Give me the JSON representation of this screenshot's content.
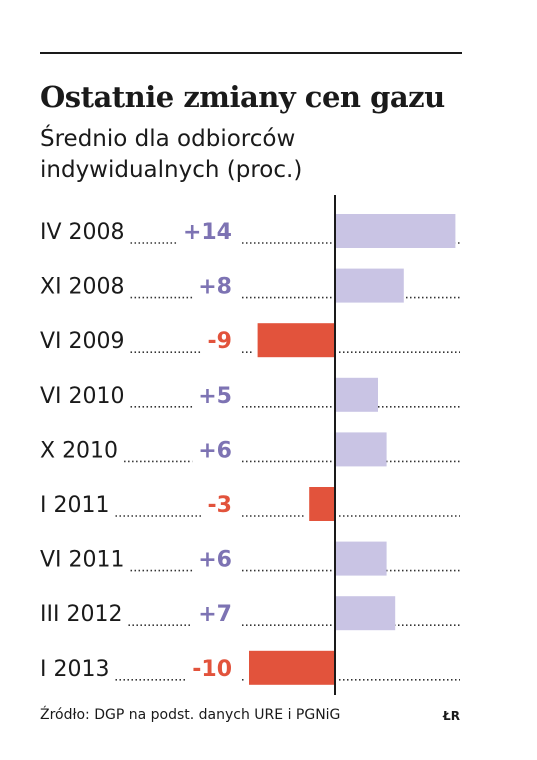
{
  "header": {
    "title": "Ostatnie zmiany cen gazu",
    "subtitle": "Średnio dla odbiorców indywidualnych (proc.)"
  },
  "footer": {
    "source": "Źródło: DGP na podst. danych URE i PGNiG",
    "logo": "ŁR"
  },
  "colors": {
    "positive": "#c9c4e4",
    "positive_text": "#7d73b3",
    "negative": "#e2533c",
    "negative_text": "#e2533c",
    "axis": "#1a1a1a",
    "dots": "#333333"
  },
  "chart_data": {
    "type": "bar",
    "orientation": "horizontal",
    "categories": [
      "IV 2008",
      "XI 2008",
      "VI 2009",
      "VI 2010",
      "X 2010",
      "I 2011",
      "VI 2011",
      "III 2012",
      "I 2013"
    ],
    "values": [
      14,
      8,
      -9,
      5,
      6,
      -3,
      6,
      7,
      -10
    ],
    "value_labels": [
      "+14",
      "+8",
      "-9",
      "+5",
      "+6",
      "-3",
      "+6",
      "+7",
      "-10"
    ],
    "xlim": [
      -10,
      14
    ],
    "grid": false
  }
}
